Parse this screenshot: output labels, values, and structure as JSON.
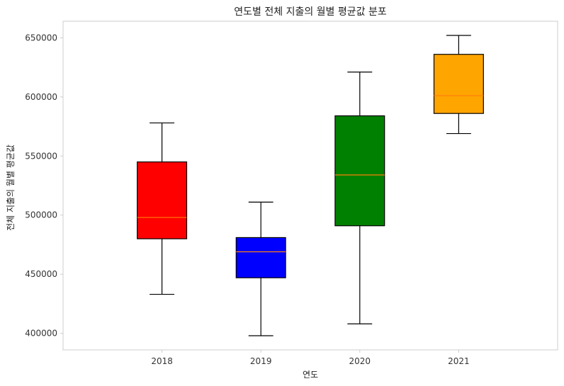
{
  "chart_data": {
    "type": "box",
    "title": "연도별 전체 지출의 월별 평균값 분포",
    "xlabel": "연도",
    "ylabel": "전체 지출의 월별 평균값",
    "ylim": [
      386000,
      664000
    ],
    "yticks": [
      400000,
      450000,
      500000,
      550000,
      600000,
      650000
    ],
    "ytick_labels": [
      "400000",
      "450000",
      "500000",
      "550000",
      "600000",
      "650000"
    ],
    "grid": false,
    "categories": [
      "2018",
      "2019",
      "2020",
      "2021"
    ],
    "boxes": [
      {
        "category": "2018",
        "whisker_low": 433000,
        "q1": 480000,
        "median": 498000,
        "q3": 545000,
        "whisker_high": 578000,
        "color": "#ff0000"
      },
      {
        "category": "2019",
        "whisker_low": 398000,
        "q1": 447000,
        "median": 469000,
        "q3": 481000,
        "whisker_high": 511000,
        "color": "#0000ff"
      },
      {
        "category": "2020",
        "whisker_low": 408000,
        "q1": 491000,
        "median": 534000,
        "q3": 584000,
        "whisker_high": 621000,
        "color": "#008000"
      },
      {
        "category": "2021",
        "whisker_low": 569000,
        "q1": 586000,
        "median": 601000,
        "q3": 636000,
        "whisker_high": 652000,
        "color": "#ffa500"
      }
    ],
    "median_color": "#ff7f0e",
    "frame_color": "#cccccc"
  }
}
